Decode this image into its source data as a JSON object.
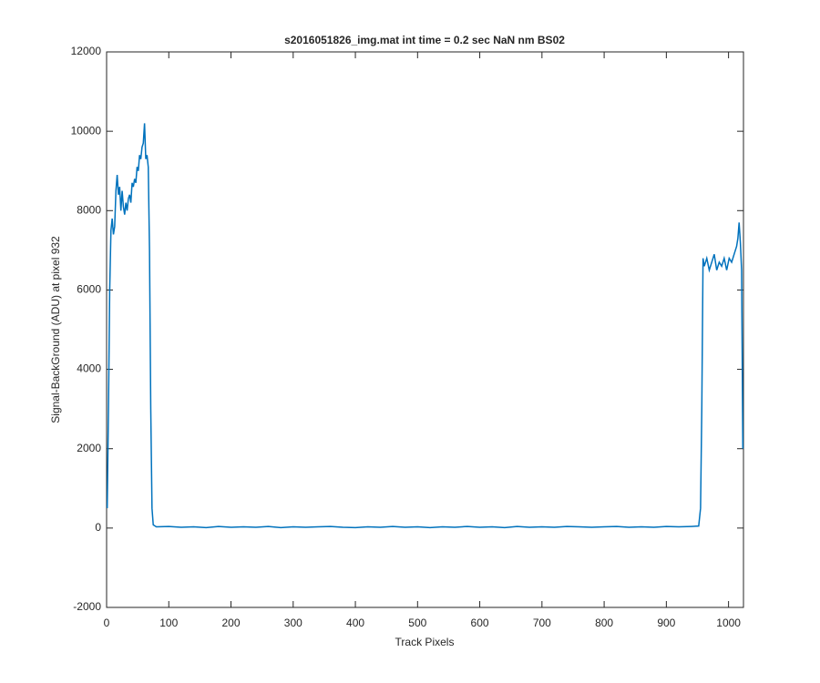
{
  "chart_data": {
    "type": "line",
    "title": "s2016051826_img.mat int time = 0.2 sec  NaN nm BS02",
    "x_label": "Track Pixels",
    "y_label": "Signal-BackGround (ADU) at pixel 932",
    "color": "#0072bd",
    "x": [
      1,
      3,
      5,
      7,
      9,
      11,
      13,
      15,
      17,
      19,
      21,
      23,
      25,
      27,
      29,
      31,
      33,
      35,
      37,
      39,
      41,
      43,
      45,
      47,
      49,
      51,
      53,
      55,
      57,
      59,
      61,
      63,
      65,
      67,
      69,
      71,
      73,
      75,
      80,
      100,
      120,
      140,
      160,
      180,
      200,
      220,
      240,
      260,
      280,
      300,
      320,
      340,
      360,
      380,
      400,
      420,
      440,
      460,
      480,
      500,
      520,
      540,
      560,
      580,
      600,
      620,
      640,
      660,
      680,
      700,
      720,
      740,
      760,
      780,
      800,
      820,
      840,
      860,
      880,
      900,
      920,
      940,
      952,
      955,
      957,
      959,
      961,
      965,
      969,
      973,
      977,
      981,
      985,
      989,
      993,
      997,
      1001,
      1005,
      1009,
      1013,
      1015,
      1017,
      1019,
      1021,
      1023
    ],
    "values": [
      500,
      3000,
      6000,
      7500,
      7800,
      7400,
      7600,
      8500,
      8900,
      8400,
      8600,
      8000,
      8500,
      8100,
      7900,
      8200,
      8000,
      8300,
      8400,
      8200,
      8700,
      8600,
      8800,
      8700,
      9100,
      9000,
      9400,
      9300,
      9600,
      9700,
      10200,
      9300,
      9400,
      9100,
      7000,
      3000,
      500,
      80,
      30,
      40,
      20,
      30,
      10,
      40,
      20,
      30,
      20,
      40,
      10,
      30,
      20,
      30,
      40,
      20,
      10,
      30,
      20,
      40,
      20,
      30,
      10,
      30,
      20,
      40,
      20,
      30,
      10,
      40,
      20,
      30,
      20,
      40,
      30,
      20,
      30,
      40,
      20,
      30,
      20,
      40,
      30,
      40,
      50,
      500,
      3000,
      6800,
      6600,
      6800,
      6500,
      6700,
      6900,
      6500,
      6700,
      6600,
      6800,
      6500,
      6800,
      6700,
      6900,
      7100,
      7300,
      7700,
      7200,
      6500,
      2000
    ],
    "xlim": [
      0,
      1024
    ],
    "ylim": [
      -2000,
      12000
    ],
    "xticks": [
      0,
      100,
      200,
      300,
      400,
      500,
      600,
      700,
      800,
      900,
      1000
    ],
    "yticks": [
      -2000,
      0,
      2000,
      4000,
      6000,
      8000,
      10000,
      12000
    ]
  }
}
